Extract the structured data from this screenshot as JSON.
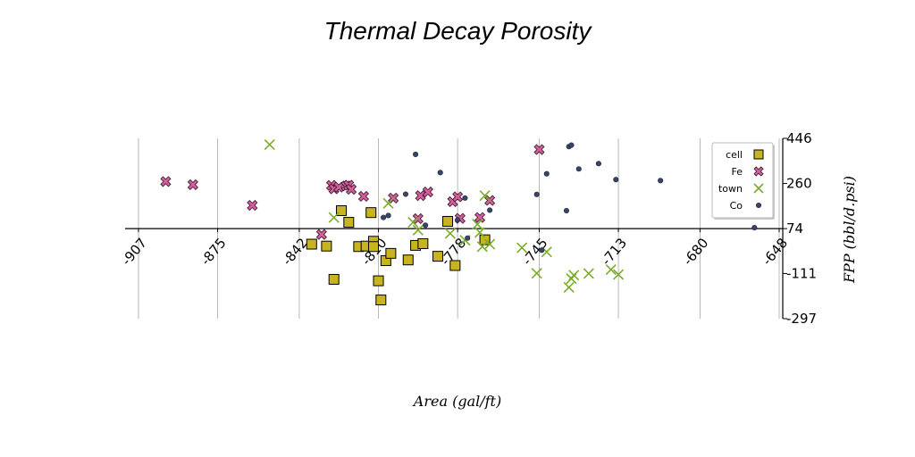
{
  "chart_data": {
    "type": "scatter",
    "title": "Thermal Decay Porosity",
    "xlabel": "Area (gal/ft)",
    "ylabel": "FPP (bbl/d.psi)",
    "xlim": [
      -907,
      -648
    ],
    "ylim": [
      -297,
      446
    ],
    "x_ticks": [
      "-907",
      "-875",
      "-842",
      "-810",
      "-778",
      "-745",
      "-713",
      "-680",
      "-648"
    ],
    "y_ticks": [
      "446",
      "260",
      "74",
      "-111",
      "-297"
    ],
    "grid": "vertical",
    "legend_position": "top-right",
    "series": [
      {
        "name": "cell",
        "marker": "square",
        "color": "#c8b41e",
        "points": [
          [
            -837,
            10
          ],
          [
            -831,
            2
          ],
          [
            -828,
            -135
          ],
          [
            -825,
            148
          ],
          [
            -822,
            100
          ],
          [
            -818,
            0
          ],
          [
            -815,
            2
          ],
          [
            -813,
            140
          ],
          [
            -812,
            22
          ],
          [
            -812,
            0
          ],
          [
            -810,
            -141
          ],
          [
            -809,
            -220
          ],
          [
            -807,
            -58
          ],
          [
            -805,
            -28
          ],
          [
            -798,
            -55
          ],
          [
            -795,
            5
          ],
          [
            -792,
            12
          ],
          [
            -786,
            -40
          ],
          [
            -782,
            104
          ],
          [
            -779,
            -78
          ],
          [
            -767,
            28
          ]
        ]
      },
      {
        "name": "Fe",
        "marker": "x-filled",
        "color": "#d0609a",
        "points": [
          [
            -896,
            268
          ],
          [
            -885,
            255
          ],
          [
            -861,
            170
          ],
          [
            -833,
            50
          ],
          [
            -829,
            252
          ],
          [
            -828,
            238
          ],
          [
            -826,
            245
          ],
          [
            -823,
            250
          ],
          [
            -822,
            253
          ],
          [
            -821,
            236
          ],
          [
            -816,
            207
          ],
          [
            -804,
            200
          ],
          [
            -794,
            115
          ],
          [
            -793,
            210
          ],
          [
            -790,
            225
          ],
          [
            -780,
            185
          ],
          [
            -778,
            205
          ],
          [
            -777,
            116
          ],
          [
            -769,
            120
          ],
          [
            -765,
            190
          ],
          [
            -745,
            400
          ]
        ]
      },
      {
        "name": "town",
        "marker": "x",
        "color": "#7aac2a",
        "points": [
          [
            -854,
            420
          ],
          [
            -828,
            120
          ],
          [
            -806,
            178
          ],
          [
            -796,
            100
          ],
          [
            -794,
            68
          ],
          [
            -781,
            54
          ],
          [
            -775,
            26
          ],
          [
            -770,
            92
          ],
          [
            -769,
            58
          ],
          [
            -768,
            0
          ],
          [
            -767,
            210
          ],
          [
            -765,
            10
          ],
          [
            -752,
            -5
          ],
          [
            -746,
            -110
          ],
          [
            -742,
            -22
          ],
          [
            -733,
            -168
          ],
          [
            -732,
            -132
          ],
          [
            -731,
            -118
          ],
          [
            -725,
            -111
          ],
          [
            -716,
            -95
          ],
          [
            -713,
            -115
          ]
        ]
      },
      {
        "name": "Co",
        "marker": "circle",
        "color": "#3a4468",
        "points": [
          [
            -808,
            120
          ],
          [
            -806,
            128
          ],
          [
            -799,
            216
          ],
          [
            -795,
            380
          ],
          [
            -791,
            88
          ],
          [
            -785,
            305
          ],
          [
            -778,
            110
          ],
          [
            -775,
            200
          ],
          [
            -774,
            35
          ],
          [
            -765,
            150
          ],
          [
            -746,
            215
          ],
          [
            -744,
            -15
          ],
          [
            -742,
            300
          ],
          [
            -734,
            148
          ],
          [
            -733,
            412
          ],
          [
            -732,
            418
          ],
          [
            -729,
            320
          ],
          [
            -721,
            342
          ],
          [
            -714,
            276
          ],
          [
            -696,
            272
          ],
          [
            -658,
            78
          ]
        ]
      }
    ]
  }
}
